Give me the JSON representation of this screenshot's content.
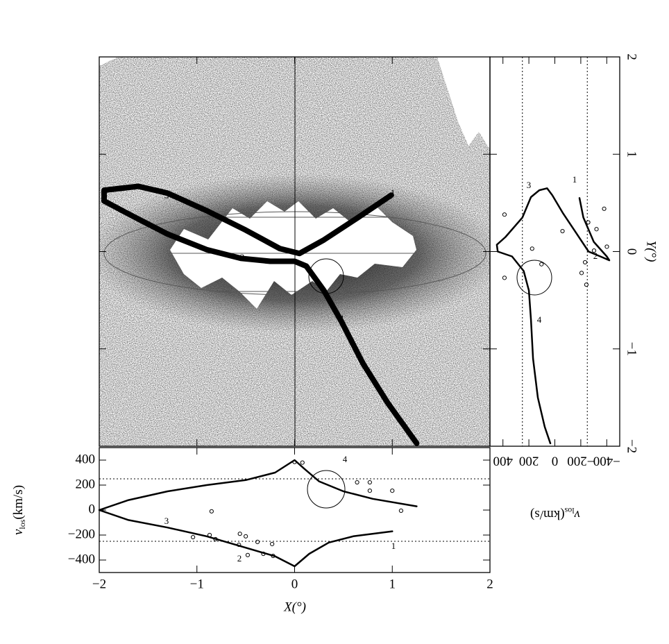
{
  "chart_data": [
    {
      "type": "orbit",
      "annotations": [
        "1",
        "2",
        "3",
        "4"
      ],
      "x": [
        1.25,
        0.95,
        0.7,
        0.48,
        0.3,
        0.12,
        0,
        -0.25,
        -0.55,
        -0.9,
        -1.3,
        -1.65,
        -1.95,
        -1.95,
        -1.6,
        -1.3,
        -0.9,
        -0.5,
        -0.15,
        0.05,
        0.3,
        0.65,
        0.99
      ],
      "y": [
        -1.97,
        -1.55,
        -1.15,
        -0.72,
        -0.4,
        -0.15,
        -0.1,
        -0.1,
        -0.07,
        0.02,
        0.18,
        0.36,
        0.52,
        0.63,
        0.67,
        0.6,
        0.42,
        0.22,
        0.03,
        -0.02,
        0.12,
        0.35,
        0.58
      ]
    },
    {
      "type": "line",
      "xlabel": "X(°)",
      "ylabel_parts": [
        "v",
        "los",
        "(km/s)"
      ],
      "annotations": [
        "3",
        "2",
        "1",
        "4"
      ],
      "xlim": [
        -2,
        2
      ],
      "xticks": [
        {
          "value": -2,
          "label": "−2"
        },
        {
          "value": -1,
          "label": "−1"
        },
        0,
        1,
        2
      ],
      "ylim": [
        -500,
        500
      ],
      "yticks": [
        {
          "value": -400,
          "label": "−400"
        },
        {
          "value": -200,
          "label": "−200"
        },
        0,
        200,
        400
      ],
      "hlines": [
        250,
        -250
      ],
      "x": [
        1.25,
        0.8,
        0.5,
        0.25,
        0.1,
        0,
        -0.2,
        -0.5,
        -0.9,
        -1.3,
        -1.7,
        -2,
        -1.7,
        -1.3,
        -0.9,
        -0.55,
        -0.2,
        0,
        0.15,
        0.35,
        0.6,
        1.0
      ],
      "y": [
        30,
        90,
        150,
        230,
        330,
        400,
        300,
        240,
        200,
        150,
        80,
        0,
        -80,
        -140,
        -210,
        -290,
        -370,
        -450,
        -350,
        -260,
        -210,
        -170
      ],
      "points": {
        "x": [
          0,
          0.08,
          0.64,
          0.77,
          0.77,
          1.0,
          1.09,
          -0.85,
          -0.56,
          -0.5,
          -0.57,
          -0.48,
          -0.87,
          -1.04,
          -0.38,
          -0.23,
          -0.22,
          -0.32,
          -0.81
        ],
        "y": [
          385,
          380,
          222,
          222,
          155,
          155,
          -5,
          -10,
          -190,
          -210,
          -278,
          -360,
          -200,
          -217,
          -255,
          -272,
          -367,
          -350,
          -233
        ]
      }
    },
    {
      "type": "line",
      "xlabel_parts": [
        "v",
        "los",
        "(km/s)"
      ],
      "ylabel": "Y(°)",
      "annotations": [
        "3",
        "1",
        "2",
        "4"
      ],
      "xlim": [
        500,
        -500
      ],
      "xticks": [
        400,
        200,
        0,
        {
          "value": -200,
          "label": "−200"
        },
        {
          "value": -400,
          "label": "−400"
        }
      ],
      "ylim": [
        -2,
        2
      ],
      "yticks": [
        {
          "value": -2,
          "label": "−2"
        },
        {
          "value": -1,
          "label": "−1"
        },
        0,
        1,
        2
      ],
      "vlines": [
        250,
        -250
      ],
      "x": [
        35,
        78,
        131,
        168,
        184,
        200,
        240,
        330,
        440,
        447,
        380,
        250,
        184,
        120,
        60,
        20,
        -60,
        -160,
        -260,
        -350,
        -420,
        -400,
        -300,
        -220,
        -190
      ],
      "y": [
        -1.97,
        -1.8,
        -1.5,
        -1.1,
        -0.7,
        -0.4,
        -0.2,
        -0.05,
        0.0,
        0.07,
        0.15,
        0.35,
        0.56,
        0.63,
        0.65,
        0.58,
        0.4,
        0.2,
        0.0,
        -0.05,
        -0.09,
        -0.05,
        0.1,
        0.35,
        0.55
      ],
      "points": {
        "x": [
          388,
          -380,
          -257,
          -321,
          -401,
          -302,
          -59,
          175,
          -206,
          -243,
          388,
          103,
          -233
        ],
        "y": [
          0.38,
          0.44,
          0.3,
          0.23,
          0.05,
          0.01,
          0.21,
          0.03,
          -0.22,
          -0.34,
          -0.27,
          -0.13,
          -0.11
        ]
      }
    }
  ]
}
